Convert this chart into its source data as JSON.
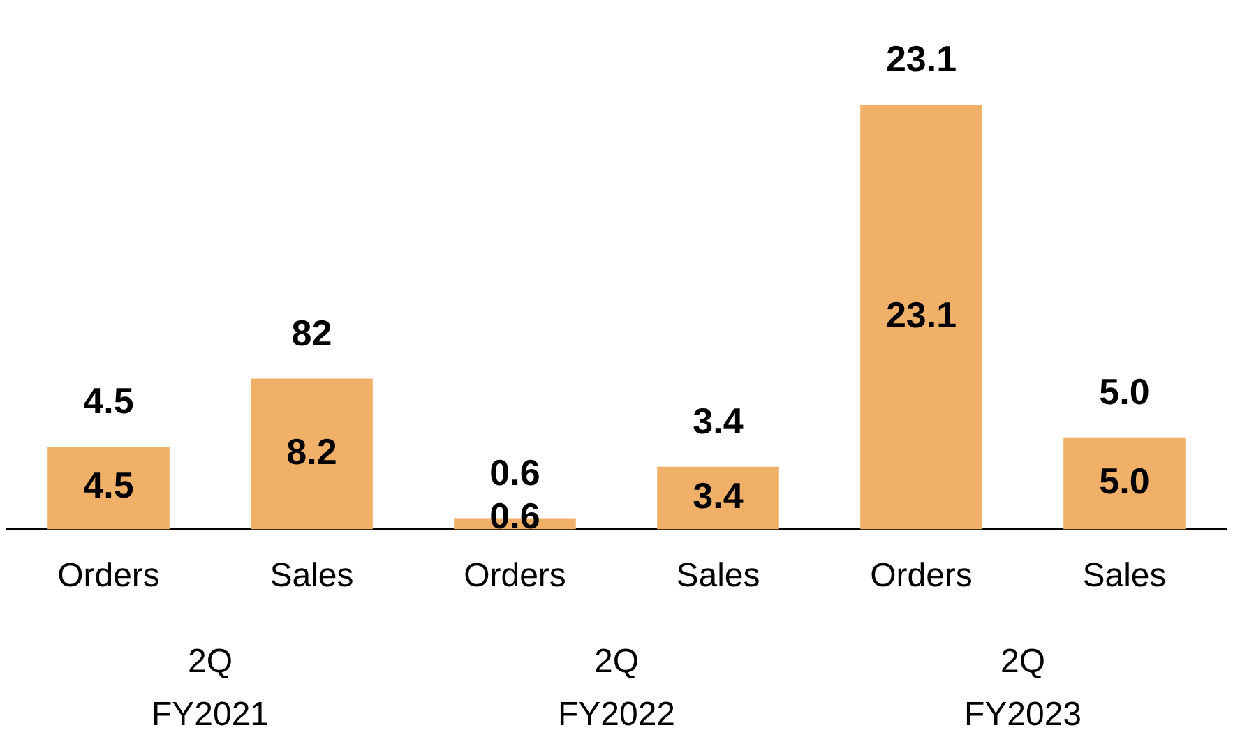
{
  "chart_data": {
    "type": "bar",
    "categories": [
      "Orders",
      "Sales",
      "Orders",
      "Sales",
      "Orders",
      "Sales"
    ],
    "values": [
      4.5,
      8.2,
      0.6,
      3.4,
      23.1,
      5.0
    ],
    "color": "#f0b068",
    "value_labels": [
      "4.5",
      "8.2",
      "0.6",
      "3.4",
      "23.1",
      "5.0"
    ],
    "annotations": [
      "4.5",
      "82",
      "0.6",
      "3.4",
      "23.1",
      "5.0",
      "2Q\nFY2021",
      "2Q\nFY2022",
      "2Q\nFY2023"
    ],
    "grid": false,
    "legend": false
  }
}
